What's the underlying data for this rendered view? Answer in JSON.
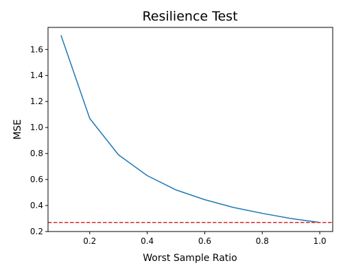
{
  "chart_data": {
    "type": "line",
    "title": "Resilience Test",
    "xlabel": "Worst Sample Ratio",
    "ylabel": "MSE",
    "xlim": [
      0.055,
      1.045
    ],
    "ylim": [
      0.2,
      1.77
    ],
    "x_ticks": [
      0.2,
      0.4,
      0.6,
      0.8,
      1.0
    ],
    "x_tick_labels": [
      "0.2",
      "0.4",
      "0.6",
      "0.8",
      "1.0"
    ],
    "y_ticks": [
      0.2,
      0.4,
      0.6,
      0.8,
      1.0,
      1.2,
      1.4,
      1.6
    ],
    "y_tick_labels": [
      "0.2",
      "0.4",
      "0.6",
      "0.8",
      "1.0",
      "1.2",
      "1.4",
      "1.6"
    ],
    "grid": false,
    "series": [
      {
        "color": "#1f77b4",
        "x": [
          0.1,
          0.2,
          0.3,
          0.4,
          0.5,
          0.6,
          0.7,
          0.8,
          0.9,
          1.0
        ],
        "y": [
          1.71,
          1.07,
          0.79,
          0.63,
          0.52,
          0.445,
          0.385,
          0.34,
          0.3,
          0.27
        ]
      }
    ],
    "reference_lines": [
      {
        "orientation": "horizontal",
        "y": 0.27,
        "color": "#d62728",
        "style": "dashed"
      }
    ]
  }
}
